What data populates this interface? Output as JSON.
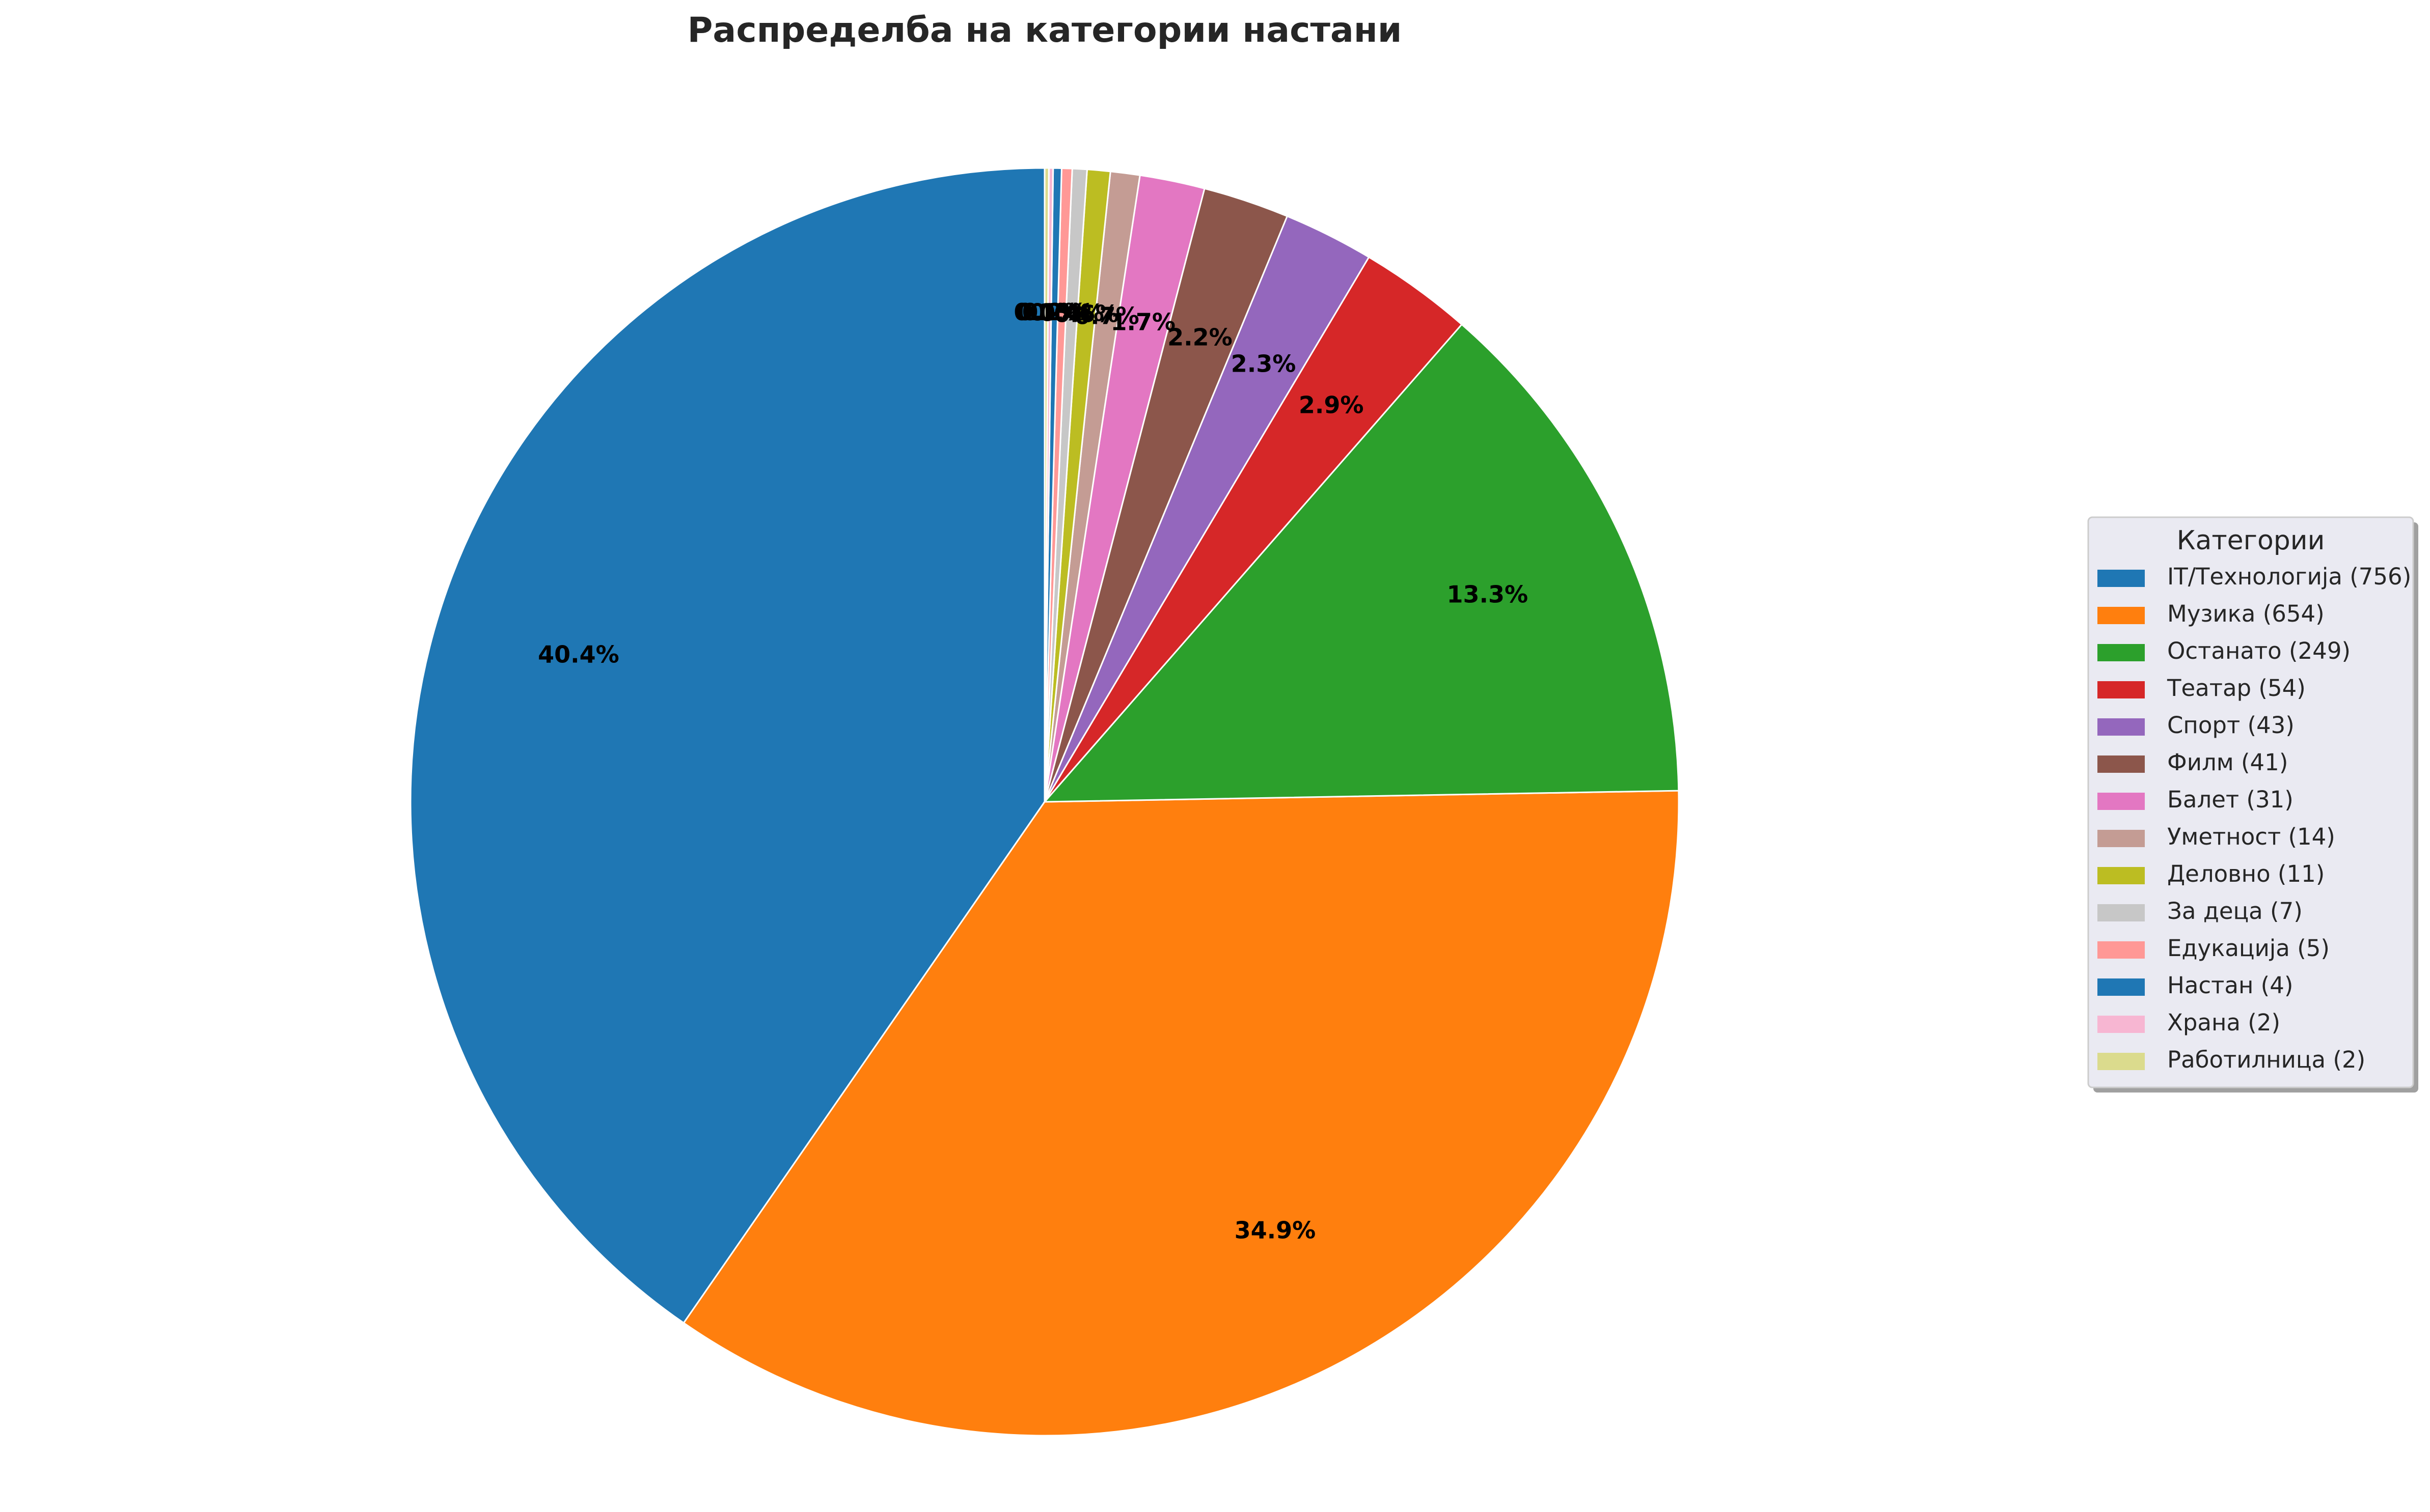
{
  "chart_data": {
    "type": "pie",
    "title": "Распределба на категории настани",
    "start_angle": "top, counter-clockwise",
    "legend_title": "Категории",
    "legend_placement": "center-right",
    "slices": [
      {
        "name": "IT/Технологија",
        "value": 756,
        "legend": "IT/Технологија (756)",
        "pct": "40.4%",
        "color": "#1f77b4"
      },
      {
        "name": "Музика",
        "value": 654,
        "legend": "Музика (654)",
        "pct": "34.9%",
        "color": "#ff7f0e"
      },
      {
        "name": "Останато",
        "value": 249,
        "legend": "Останато (249)",
        "pct": "13.3%",
        "color": "#2ca02c"
      },
      {
        "name": "Театар",
        "value": 54,
        "legend": "Театар (54)",
        "pct": "2.9%",
        "color": "#d62728"
      },
      {
        "name": "Спорт",
        "value": 43,
        "legend": "Спорт (43)",
        "pct": "2.3%",
        "color": "#9467bd"
      },
      {
        "name": "Филм",
        "value": 41,
        "legend": "Филм (41)",
        "pct": "2.2%",
        "color": "#8c564b"
      },
      {
        "name": "Балет",
        "value": 31,
        "legend": "Балет (31)",
        "pct": "1.7%",
        "color": "#e377c2"
      },
      {
        "name": "Уметност",
        "value": 14,
        "legend": "Уметност (14)",
        "pct": "0.7%",
        "color": "#c49c94"
      },
      {
        "name": "Деловно",
        "value": 11,
        "legend": "Деловно (11)",
        "pct": "0.6%",
        "color": "#bcbd22"
      },
      {
        "name": "За деца",
        "value": 7,
        "legend": "За деца (7)",
        "pct": "0.4%",
        "color": "#c7c7c7"
      },
      {
        "name": "Едукација",
        "value": 5,
        "legend": "Едукација (5)",
        "pct": "0.3%",
        "color": "#ff9896"
      },
      {
        "name": "Настан",
        "value": 4,
        "legend": "Настан (4)",
        "pct": "0.2%",
        "color": "#1f77b4"
      },
      {
        "name": "Храна",
        "value": 2,
        "legend": "Храна (2)",
        "pct": "0.1%",
        "color": "#f7b6d2"
      },
      {
        "name": "Работилница",
        "value": 2,
        "legend": "Работилница (2)",
        "pct": "0.1%",
        "color": "#dbdb8d"
      }
    ]
  }
}
